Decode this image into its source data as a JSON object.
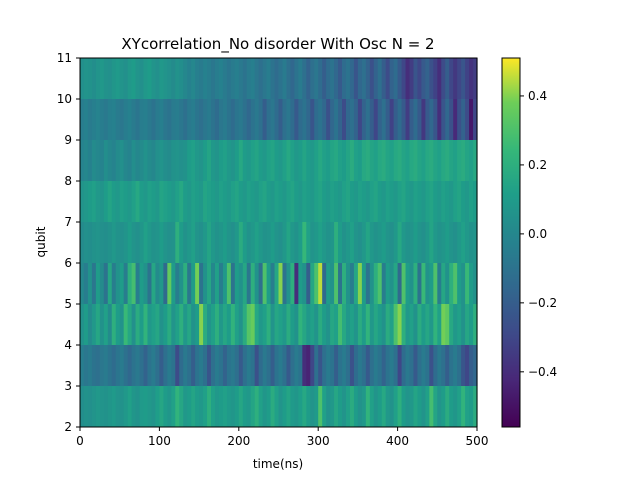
{
  "chart_data": {
    "type": "heatmap",
    "title": "XYcorrelation_No disorder With Osc N =  2",
    "xlabel": "time(ns)",
    "ylabel": "qubit",
    "xlim": [
      0,
      500
    ],
    "ylim": [
      2,
      11
    ],
    "x_ticks": [
      0,
      100,
      200,
      300,
      400,
      500
    ],
    "y_ticks": [
      2,
      3,
      4,
      5,
      6,
      7,
      8,
      9,
      10,
      11
    ],
    "colormap": "viridis",
    "colorbar": {
      "range": [
        -0.56,
        0.51
      ],
      "ticks": [
        0.4,
        0.2,
        0.0,
        -0.2,
        -0.4
      ],
      "tick_labels": [
        "0.4",
        "0.2",
        "0.0",
        "−0.2",
        "−0.4"
      ]
    },
    "rows": [
      {
        "qubit_from": 2,
        "qubit_to": 3,
        "values": [
          0.03,
          0.05,
          0.04,
          0.06,
          0.08,
          0.06,
          0.05,
          0.07,
          0.09,
          0.06,
          0.05,
          0.08,
          0.12,
          0.07,
          0.05,
          0.09,
          0.1,
          0.08,
          0.06,
          0.11,
          0.15,
          0.1,
          0.07,
          0.12,
          0.22,
          0.15,
          0.08,
          0.1,
          0.14,
          0.1,
          0.08,
          0.12,
          0.2,
          0.12,
          0.08,
          0.1,
          0.12,
          0.09,
          0.07,
          0.1,
          0.15,
          0.1,
          0.08,
          0.14,
          0.2,
          0.12,
          0.07,
          0.1,
          0.18,
          0.12,
          0.06,
          0.1,
          0.14,
          0.09,
          0.07,
          0.11,
          0.16,
          0.1,
          0.06,
          0.09,
          0.3,
          0.12,
          0.05,
          0.08,
          0.15,
          0.1,
          0.06,
          0.12,
          0.18,
          0.1,
          0.05,
          0.08,
          0.22,
          0.12,
          0.06,
          0.1,
          0.16,
          0.08,
          0.05,
          0.12,
          0.2,
          0.1,
          0.06,
          0.08,
          0.14,
          0.1,
          0.06,
          0.12,
          0.28,
          0.14,
          0.06,
          0.1,
          0.18,
          0.1,
          0.07,
          0.12,
          0.22,
          0.12,
          0.1,
          0.18
        ]
      },
      {
        "qubit_from": 3,
        "qubit_to": 4,
        "values": [
          -0.05,
          -0.08,
          -0.06,
          -0.1,
          -0.12,
          -0.08,
          -0.06,
          -0.1,
          -0.14,
          -0.09,
          -0.06,
          -0.11,
          -0.16,
          -0.1,
          -0.07,
          -0.12,
          -0.18,
          -0.1,
          -0.06,
          -0.12,
          -0.2,
          -0.12,
          -0.06,
          -0.1,
          -0.28,
          -0.14,
          -0.07,
          -0.12,
          -0.2,
          -0.1,
          -0.06,
          -0.12,
          -0.24,
          -0.12,
          -0.06,
          -0.1,
          -0.18,
          -0.1,
          -0.07,
          -0.12,
          -0.22,
          -0.12,
          -0.06,
          -0.1,
          -0.26,
          -0.14,
          -0.07,
          -0.12,
          -0.2,
          -0.1,
          -0.06,
          -0.12,
          -0.22,
          -0.12,
          -0.06,
          -0.1,
          -0.4,
          -0.44,
          -0.3,
          -0.12,
          -0.24,
          -0.12,
          -0.06,
          -0.1,
          -0.2,
          -0.1,
          -0.06,
          -0.12,
          -0.26,
          -0.14,
          -0.07,
          -0.12,
          -0.22,
          -0.12,
          -0.06,
          -0.1,
          -0.18,
          -0.1,
          -0.06,
          -0.12,
          -0.3,
          -0.14,
          -0.07,
          -0.12,
          -0.22,
          -0.12,
          -0.06,
          -0.1,
          -0.26,
          -0.14,
          -0.07,
          -0.12,
          -0.2,
          -0.1,
          -0.06,
          -0.12,
          -0.24,
          -0.3,
          -0.2,
          -0.16
        ]
      },
      {
        "qubit_from": 4,
        "qubit_to": 5,
        "values": [
          0.05,
          0.1,
          0.02,
          0.08,
          0.15,
          0.05,
          0.12,
          0.02,
          0.2,
          0.1,
          0.05,
          0.25,
          0.15,
          0.04,
          0.18,
          0.1,
          0.22,
          0.08,
          0.12,
          0.15,
          0.05,
          0.1,
          0.18,
          0.06,
          0.12,
          0.2,
          0.08,
          0.15,
          0.05,
          0.1,
          0.4,
          0.18,
          0.06,
          0.12,
          0.2,
          0.08,
          0.15,
          0.1,
          0.22,
          0.12,
          0.05,
          0.18,
          0.32,
          0.36,
          0.16,
          0.08,
          0.12,
          0.2,
          0.06,
          0.15,
          0.12,
          0.08,
          0.18,
          0.1,
          0.05,
          0.22,
          0.15,
          0.08,
          0.12,
          0.06,
          0.18,
          0.1,
          0.05,
          0.15,
          0.12,
          0.28,
          0.16,
          0.08,
          0.12,
          0.06,
          0.18,
          0.1,
          0.22,
          0.08,
          0.15,
          0.1,
          0.05,
          0.18,
          0.12,
          0.3,
          0.4,
          0.2,
          0.08,
          0.12,
          0.05,
          0.18,
          0.1,
          0.15,
          0.08,
          0.22,
          0.12,
          0.38,
          0.34,
          0.16,
          0.08,
          0.12,
          0.05,
          0.15,
          0.1,
          0.2
        ]
      },
      {
        "qubit_from": 5,
        "qubit_to": 6,
        "values": [
          0.0,
          -0.05,
          0.05,
          -0.08,
          0.1,
          0.02,
          -0.1,
          0.15,
          -0.05,
          0.05,
          0.1,
          -0.05,
          0.2,
          0.28,
          -0.05,
          0.1,
          0.05,
          -0.1,
          0.15,
          0.02,
          0.08,
          -0.15,
          0.35,
          0.1,
          -0.05,
          0.05,
          0.2,
          -0.08,
          0.1,
          0.38,
          -0.1,
          0.05,
          0.15,
          0.0,
          0.12,
          -0.05,
          0.08,
          0.3,
          -0.1,
          0.1,
          0.05,
          0.15,
          -0.08,
          0.2,
          0.05,
          -0.12,
          0.3,
          0.1,
          -0.05,
          0.15,
          0.4,
          -0.1,
          0.05,
          0.2,
          -0.4,
          0.1,
          0.05,
          -0.2,
          0.15,
          0.3,
          0.45,
          -0.15,
          0.1,
          0.05,
          0.3,
          -0.1,
          0.2,
          0.05,
          -0.05,
          0.15,
          0.4,
          0.1,
          -0.1,
          0.05,
          0.2,
          0.3,
          -0.05,
          0.1,
          0.05,
          0.15,
          -0.15,
          0.3,
          0.1,
          0.05,
          0.2,
          -0.1,
          0.25,
          0.05,
          0.1,
          0.3,
          -0.05,
          0.15,
          0.05,
          0.2,
          0.3,
          0.1,
          0.05,
          0.25,
          0.1,
          0.05
        ]
      },
      {
        "qubit_from": 6,
        "qubit_to": 7,
        "values": [
          0.02,
          0.04,
          0.03,
          0.05,
          0.06,
          0.04,
          0.03,
          0.05,
          0.08,
          0.05,
          0.04,
          0.06,
          0.1,
          0.06,
          0.04,
          0.07,
          0.12,
          0.08,
          0.05,
          0.06,
          0.1,
          0.06,
          0.04,
          0.05,
          0.2,
          0.1,
          0.05,
          0.08,
          0.12,
          0.06,
          0.04,
          0.08,
          0.14,
          0.08,
          0.05,
          0.07,
          0.1,
          0.06,
          0.04,
          0.08,
          0.18,
          0.1,
          0.05,
          0.08,
          0.12,
          0.08,
          0.05,
          0.06,
          0.1,
          0.06,
          0.04,
          0.08,
          0.14,
          0.08,
          0.05,
          0.1,
          0.24,
          0.12,
          0.06,
          0.08,
          0.12,
          0.08,
          0.05,
          0.07,
          0.2,
          0.1,
          0.05,
          0.08,
          0.12,
          0.06,
          0.04,
          0.08,
          0.14,
          0.08,
          0.05,
          0.07,
          0.1,
          0.06,
          0.04,
          0.08,
          0.16,
          0.08,
          0.05,
          0.06,
          0.1,
          0.06,
          0.04,
          0.08,
          0.14,
          0.08,
          0.05,
          0.07,
          0.1,
          0.06,
          0.04,
          0.08,
          0.12,
          0.08,
          0.05,
          0.06
        ]
      },
      {
        "qubit_from": 7,
        "qubit_to": 8,
        "values": [
          0.06,
          0.08,
          0.1,
          0.12,
          0.08,
          0.06,
          0.1,
          0.14,
          0.1,
          0.08,
          0.12,
          0.1,
          0.08,
          0.12,
          0.16,
          0.1,
          0.08,
          0.12,
          0.1,
          0.08,
          0.14,
          0.12,
          0.1,
          0.08,
          0.12,
          0.16,
          0.1,
          0.08,
          0.12,
          0.1,
          0.08,
          0.14,
          0.12,
          0.1,
          0.08,
          0.12,
          0.1,
          0.08,
          0.12,
          0.14,
          0.1,
          0.08,
          0.12,
          0.1,
          0.08,
          0.12,
          0.14,
          0.1,
          0.08,
          0.12,
          0.1,
          0.08,
          0.12,
          0.14,
          0.1,
          0.08,
          0.12,
          0.1,
          0.08,
          0.12,
          0.14,
          0.1,
          0.08,
          0.12,
          0.1,
          0.08,
          0.12,
          0.14,
          0.1,
          0.08,
          0.12,
          0.1,
          0.08,
          0.12,
          0.14,
          0.1,
          0.08,
          0.12,
          0.1,
          0.08,
          0.12,
          0.14,
          0.1,
          0.08,
          0.12,
          0.1,
          0.08,
          0.12,
          0.14,
          0.1,
          0.08,
          0.12,
          0.1,
          0.08,
          0.12,
          0.14,
          0.1,
          0.08,
          0.12,
          0.1
        ]
      },
      {
        "qubit_from": 8,
        "qubit_to": 9,
        "values": [
          -0.02,
          0.0,
          -0.03,
          0.02,
          0.0,
          -0.02,
          0.03,
          0.0,
          -0.02,
          0.02,
          0.04,
          0.0,
          -0.02,
          0.03,
          0.0,
          0.02,
          0.05,
          0.02,
          0.0,
          0.04,
          0.06,
          0.03,
          0.02,
          0.05,
          0.06,
          0.04,
          0.05,
          0.1,
          0.12,
          0.08,
          0.06,
          0.1,
          0.14,
          0.08,
          0.06,
          0.1,
          0.12,
          0.08,
          0.06,
          0.1,
          0.16,
          0.1,
          0.08,
          0.12,
          0.14,
          0.1,
          0.08,
          0.12,
          0.14,
          0.1,
          0.08,
          0.12,
          0.16,
          0.12,
          0.08,
          0.1,
          0.14,
          0.1,
          0.08,
          0.12,
          0.16,
          0.12,
          0.1,
          0.14,
          0.16,
          0.12,
          0.1,
          0.14,
          0.18,
          0.12,
          0.1,
          0.16,
          0.18,
          0.14,
          0.12,
          0.16,
          0.18,
          0.14,
          0.12,
          0.16,
          0.18,
          0.14,
          0.12,
          0.16,
          0.18,
          0.14,
          0.12,
          0.16,
          0.18,
          0.14,
          0.12,
          0.16,
          0.18,
          0.14,
          0.12,
          0.16,
          0.18,
          0.14,
          0.12,
          0.16
        ]
      },
      {
        "qubit_from": 9,
        "qubit_to": 10,
        "values": [
          -0.05,
          -0.03,
          -0.06,
          -0.04,
          -0.02,
          -0.05,
          -0.07,
          -0.04,
          -0.03,
          -0.06,
          -0.08,
          -0.05,
          -0.03,
          -0.06,
          -0.09,
          -0.05,
          -0.04,
          -0.07,
          -0.1,
          -0.06,
          -0.04,
          -0.08,
          -0.1,
          -0.06,
          -0.05,
          -0.08,
          -0.12,
          -0.07,
          -0.05,
          -0.09,
          -0.12,
          -0.08,
          -0.06,
          -0.1,
          -0.14,
          -0.08,
          -0.06,
          -0.1,
          -0.14,
          -0.09,
          -0.07,
          -0.11,
          -0.16,
          -0.1,
          -0.07,
          -0.12,
          -0.2,
          -0.12,
          -0.08,
          -0.14,
          -0.2,
          -0.12,
          -0.08,
          -0.14,
          -0.22,
          -0.14,
          -0.1,
          -0.16,
          -0.24,
          -0.14,
          -0.1,
          -0.16,
          -0.26,
          -0.16,
          -0.1,
          -0.18,
          -0.28,
          -0.16,
          -0.12,
          -0.18,
          -0.3,
          -0.18,
          -0.12,
          -0.2,
          -0.3,
          -0.18,
          -0.12,
          -0.2,
          -0.32,
          -0.2,
          -0.14,
          -0.22,
          -0.34,
          -0.2,
          -0.14,
          -0.22,
          -0.36,
          -0.22,
          -0.16,
          -0.24,
          -0.4,
          -0.24,
          -0.16,
          -0.26,
          -0.42,
          -0.26,
          -0.18,
          -0.28,
          -0.48,
          -0.3
        ]
      },
      {
        "qubit_from": 10,
        "qubit_to": 11,
        "values": [
          0.04,
          0.06,
          0.05,
          0.03,
          0.06,
          0.08,
          0.05,
          0.04,
          0.07,
          0.09,
          0.06,
          0.04,
          0.08,
          0.1,
          0.06,
          0.04,
          0.08,
          0.1,
          0.06,
          0.04,
          0.08,
          0.06,
          0.04,
          0.02,
          0.05,
          0.03,
          0.0,
          -0.03,
          0.0,
          -0.04,
          -0.06,
          -0.03,
          -0.05,
          -0.08,
          -0.05,
          -0.03,
          -0.06,
          -0.09,
          -0.06,
          -0.04,
          -0.07,
          -0.1,
          -0.06,
          -0.04,
          -0.08,
          -0.12,
          -0.08,
          -0.05,
          -0.1,
          -0.14,
          -0.1,
          -0.06,
          -0.12,
          -0.16,
          -0.1,
          -0.06,
          -0.12,
          -0.18,
          -0.12,
          -0.08,
          -0.14,
          -0.2,
          -0.14,
          -0.1,
          -0.16,
          -0.22,
          -0.14,
          -0.1,
          -0.16,
          -0.24,
          -0.16,
          -0.12,
          -0.18,
          -0.26,
          -0.18,
          -0.12,
          -0.2,
          -0.28,
          -0.18,
          -0.14,
          -0.22,
          -0.3,
          -0.4,
          -0.34,
          -0.24,
          -0.3,
          -0.22,
          -0.18,
          -0.26,
          -0.32,
          -0.4,
          -0.28,
          -0.2,
          -0.3,
          -0.36,
          -0.3,
          -0.24,
          -0.32,
          -0.38,
          -0.34
        ]
      }
    ]
  }
}
